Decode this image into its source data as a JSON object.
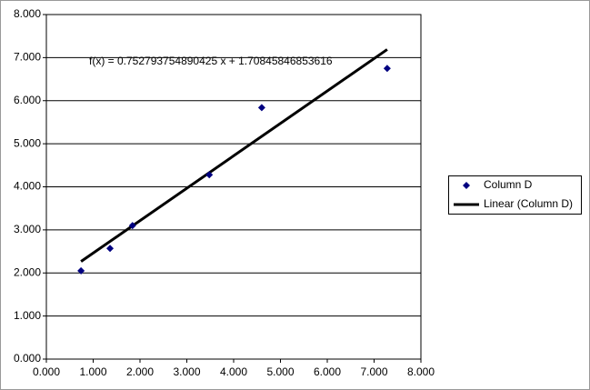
{
  "chart_data": {
    "type": "scatter",
    "series": [
      {
        "name": "Column D",
        "color": "#000080",
        "x": [
          0.74,
          1.36,
          1.84,
          3.48,
          4.6,
          7.28
        ],
        "values": [
          2.05,
          2.57,
          3.1,
          4.28,
          5.84,
          6.75
        ]
      }
    ],
    "trendline": {
      "name": "Linear (Column D)",
      "color": "#000000",
      "equation": "f(x) = 0.752793754890425 x + 1.70845846853616",
      "x": [
        0.74,
        7.28
      ],
      "values": [
        2.266,
        7.189
      ]
    },
    "xlim": [
      0,
      8
    ],
    "ylim": [
      0,
      8
    ],
    "xticks": [
      {
        "value": 0,
        "label": "0.000"
      },
      {
        "value": 1,
        "label": "1.000"
      },
      {
        "value": 2,
        "label": "2.000"
      },
      {
        "value": 3,
        "label": "3.000"
      },
      {
        "value": 4,
        "label": "4.000"
      },
      {
        "value": 5,
        "label": "5.000"
      },
      {
        "value": 6,
        "label": "6.000"
      },
      {
        "value": 7,
        "label": "7.000"
      },
      {
        "value": 8,
        "label": "8.000"
      }
    ],
    "yticks": [
      {
        "value": 0,
        "label": "0.000"
      },
      {
        "value": 1,
        "label": "1.000"
      },
      {
        "value": 2,
        "label": "2.000"
      },
      {
        "value": 3,
        "label": "3.000"
      },
      {
        "value": 4,
        "label": "4.000"
      },
      {
        "value": 5,
        "label": "5.000"
      },
      {
        "value": 6,
        "label": "6.000"
      },
      {
        "value": 7,
        "label": "7.000"
      },
      {
        "value": 8,
        "label": "8.000"
      }
    ],
    "grid": true,
    "legend": "right"
  }
}
